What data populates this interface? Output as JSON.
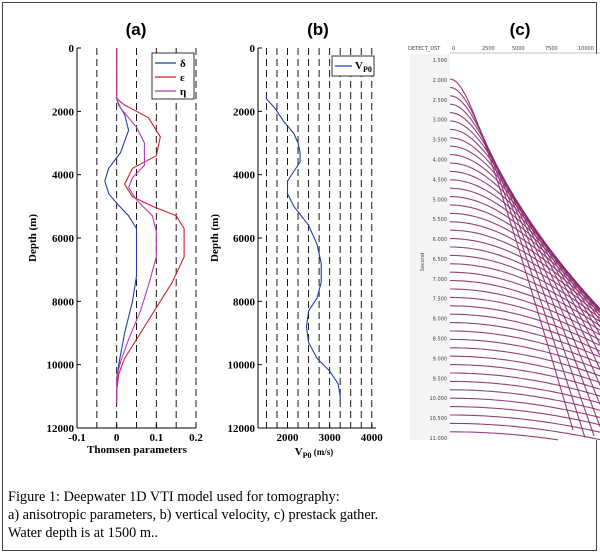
{
  "panels": {
    "a": {
      "title": "(a)",
      "ylabel": "Depth (m)",
      "xlabel": "Thomsen parameters",
      "xticks": [
        "-0.1",
        "0",
        "0.1",
        "0.2"
      ],
      "yticks": [
        "0",
        "2000",
        "4000",
        "6000",
        "8000",
        "10000",
        "12000"
      ],
      "legend": [
        {
          "label": "δ",
          "color": "#1f3fa8"
        },
        {
          "label": "ε",
          "color": "#d0202a"
        },
        {
          "label": "η",
          "color": "#b03ab8"
        }
      ]
    },
    "b": {
      "title": "(b)",
      "ylabel": "Depth (m)",
      "xlabel_main": "V",
      "xlabel_sub": "P0",
      "xlabel_unit": " (m/s)",
      "xticks": [
        "2000",
        "3000",
        "4000"
      ],
      "yticks": [
        "0",
        "2000",
        "4000",
        "6000",
        "8000",
        "10000",
        "12000"
      ],
      "legend_main": "V",
      "legend_sub": "P0",
      "legend_color": "#1f3fa8"
    },
    "c": {
      "title": "(c)",
      "header_label": "DETECT_DST",
      "header_ticks": [
        "0",
        "2500",
        "5000",
        "7500",
        "10000"
      ],
      "ylabel": "Second",
      "time_ticks": [
        "1.500",
        "2.000",
        "2.500",
        "3.000",
        "3.500",
        "4.000",
        "4.500",
        "5.000",
        "5.500",
        "6.000",
        "6.500",
        "7.000",
        "7.500",
        "8.000",
        "8.500",
        "9.000",
        "9.500",
        "10.000",
        "10.500",
        "11.000"
      ],
      "trace_color": "#8a2a6a"
    }
  },
  "chart_data": [
    {
      "type": "line",
      "title": "(a)",
      "xlabel": "Thomsen parameters",
      "ylabel": "Depth (m)",
      "xlim": [
        -0.1,
        0.2
      ],
      "ylim": [
        12000,
        0
      ],
      "grid": "dashed vertical",
      "legend_placement": "top-right",
      "series": [
        {
          "name": "δ",
          "x": [
            0,
            0,
            0.005,
            0.02,
            0.03,
            0.01,
            -0.02,
            -0.03,
            -0.02,
            0.0,
            0.03,
            0.05,
            0.05,
            0.05,
            0.04,
            0.02,
            0.005,
            0,
            0,
            0
          ],
          "y": [
            0,
            1600,
            1800,
            2100,
            2600,
            3300,
            3800,
            4200,
            4600,
            4900,
            5300,
            5700,
            6500,
            7200,
            8000,
            9000,
            10000,
            10500,
            11000,
            11200
          ]
        },
        {
          "name": "ε",
          "x": [
            0,
            0,
            0.02,
            0.08,
            0.11,
            0.1,
            0.04,
            0.02,
            0.04,
            0.09,
            0.15,
            0.17,
            0.17,
            0.14,
            0.1,
            0.06,
            0.02,
            0.005,
            0,
            0
          ],
          "y": [
            0,
            1600,
            1800,
            2200,
            2800,
            3400,
            3800,
            4300,
            4700,
            5000,
            5300,
            5700,
            6600,
            7400,
            8200,
            9000,
            9800,
            10300,
            10800,
            11200
          ]
        },
        {
          "name": "η",
          "x": [
            0,
            0,
            0.01,
            0.05,
            0.07,
            0.07,
            0.04,
            0.03,
            0.05,
            0.09,
            0.1,
            0.1,
            0.08,
            0.06,
            0.03,
            0.01,
            0,
            0
          ],
          "y": [
            0,
            1600,
            1900,
            2500,
            3000,
            3700,
            4100,
            4400,
            4800,
            5300,
            5800,
            6600,
            7500,
            8300,
            9200,
            9900,
            10400,
            11200
          ]
        }
      ]
    },
    {
      "type": "line",
      "title": "(b)",
      "xlabel": "VP0 (m/s)",
      "ylabel": "Depth (m)",
      "xlim": [
        1300,
        4100
      ],
      "ylim": [
        12000,
        0
      ],
      "grid": "dashed vertical",
      "legend_placement": "top-right",
      "series": [
        {
          "name": "VP0",
          "x": [
            1500,
            1500,
            1700,
            1900,
            2150,
            2250,
            2300,
            2300,
            2150,
            2000,
            2000,
            2150,
            2500,
            2700,
            2800,
            2800,
            2700,
            2500,
            2450,
            2500,
            2700,
            3000,
            3200,
            3250,
            3250
          ],
          "y": [
            1500,
            1600,
            1900,
            2300,
            2700,
            3000,
            3300,
            3600,
            3900,
            4200,
            4600,
            5000,
            5600,
            6200,
            6800,
            7400,
            7900,
            8300,
            8800,
            9300,
            9800,
            10200,
            10600,
            11000,
            11200
          ]
        }
      ]
    }
  ],
  "caption": {
    "line1": "Figure 1:  Deepwater 1D VTI model used for tomography:",
    "line2": "a) anisotropic parameters, b) vertical velocity, c) prestack gather.",
    "line3": "Water depth is at 1500 m.."
  }
}
